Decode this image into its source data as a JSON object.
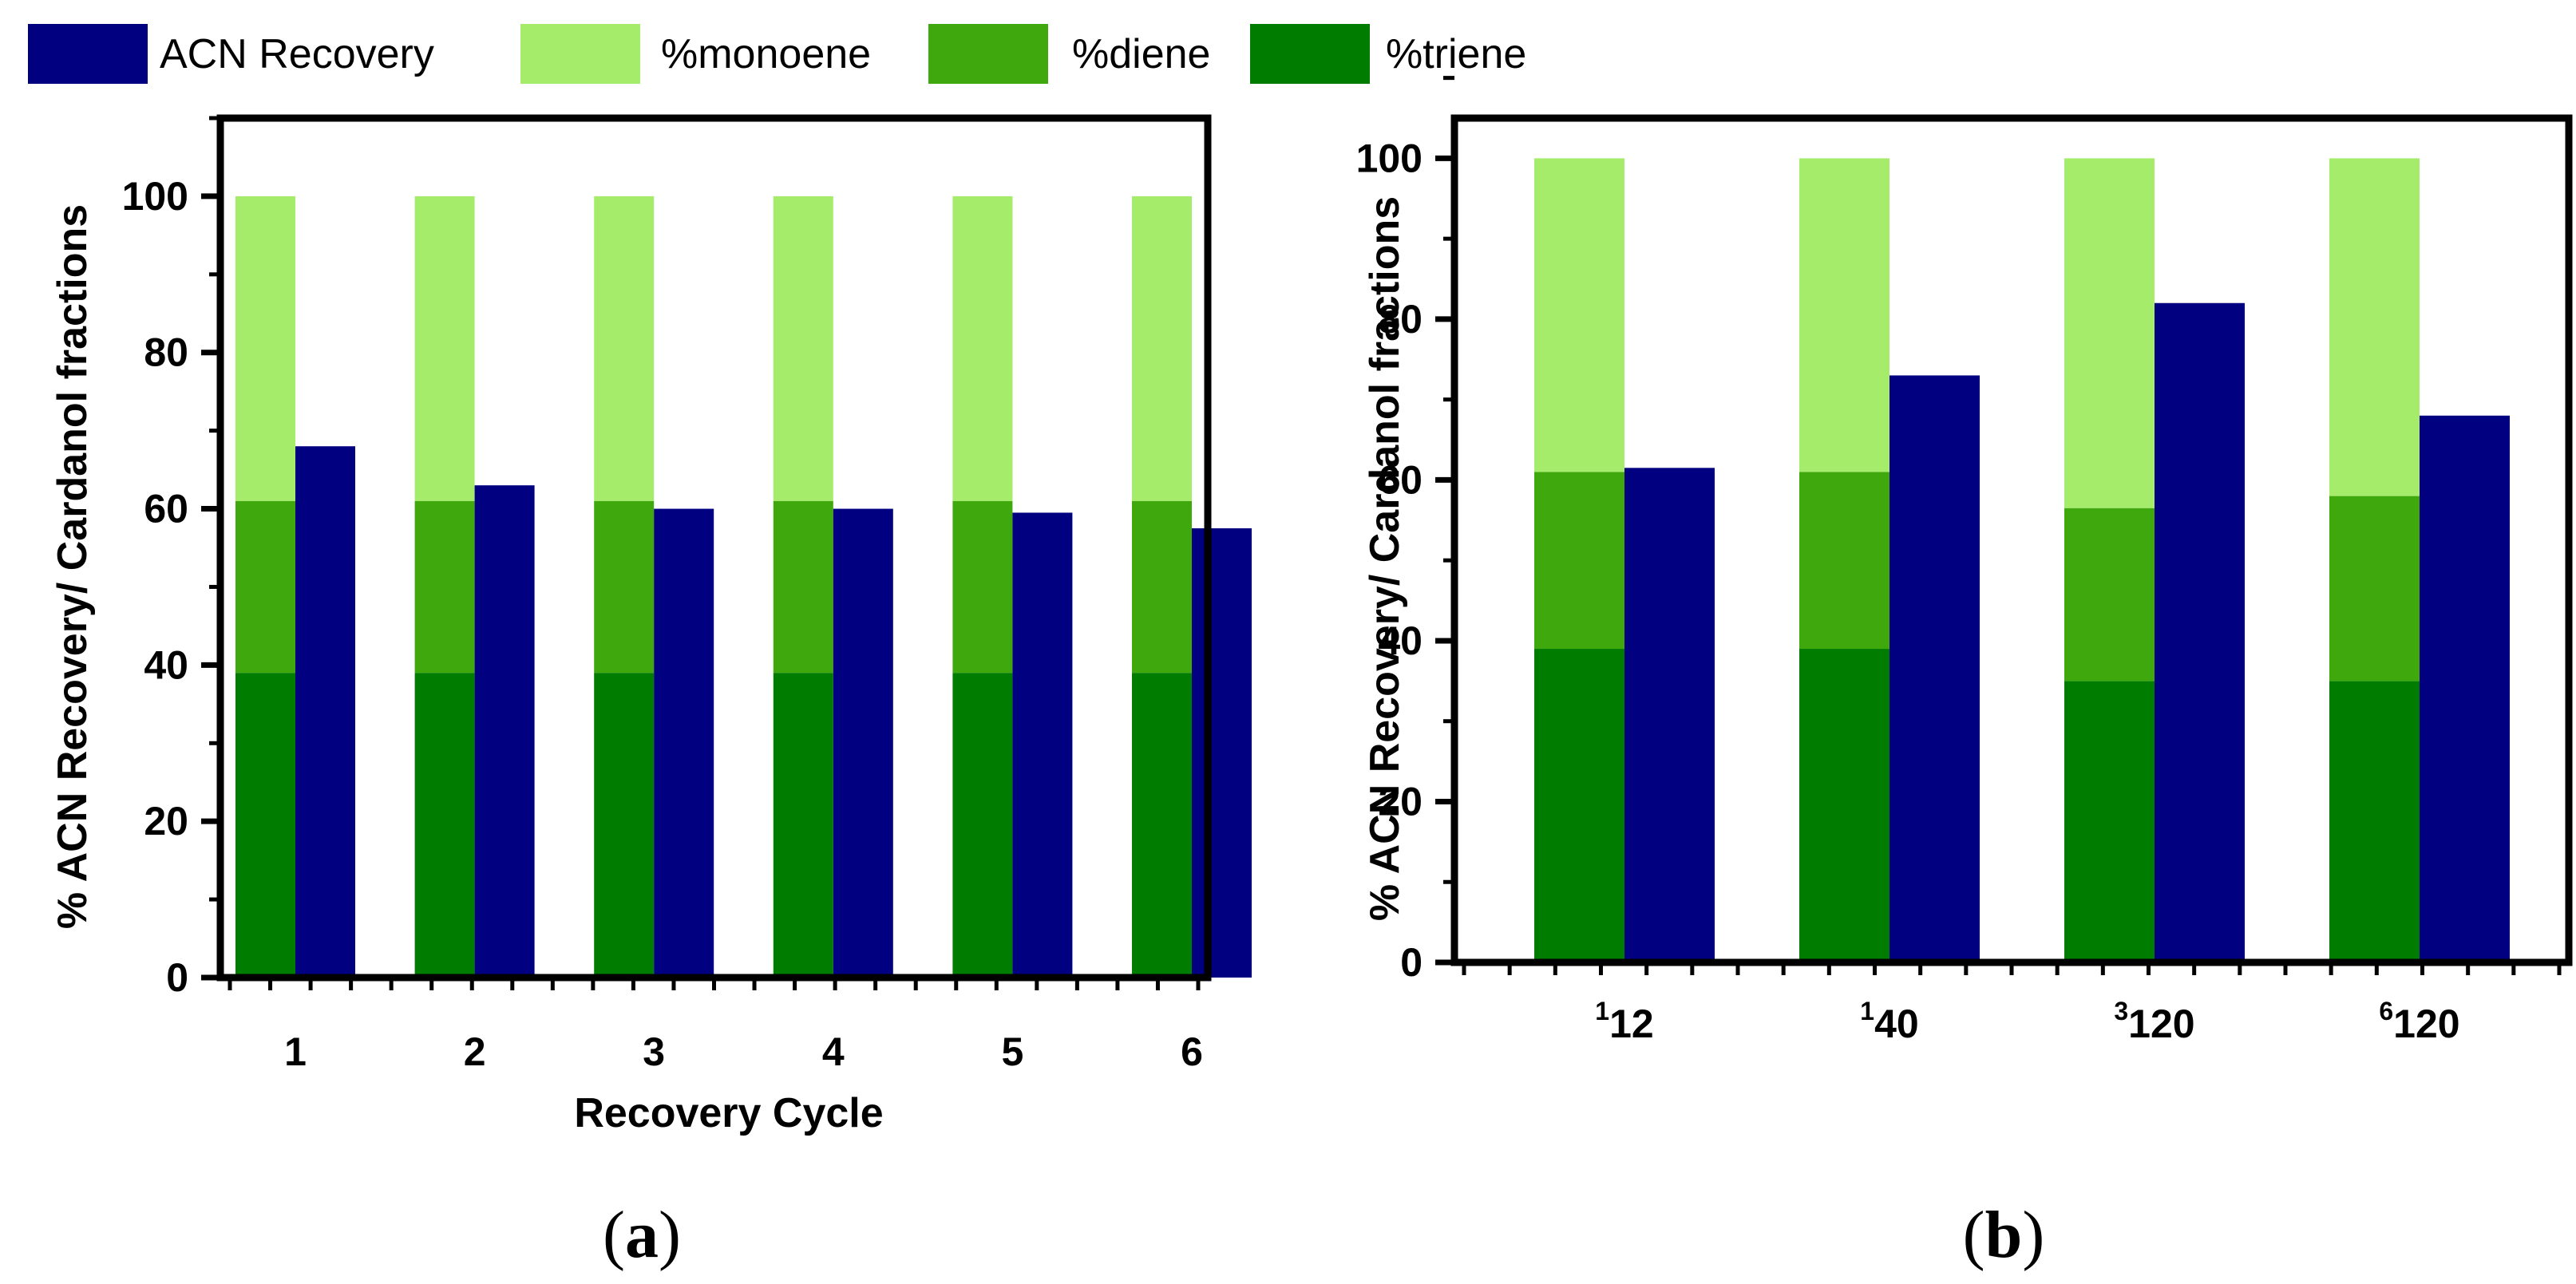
{
  "legend": {
    "items": [
      {
        "label": "ACN Recovery",
        "color": "#010080"
      },
      {
        "label": "%monoene",
        "color": "#a5ec6a"
      },
      {
        "label": "%diene",
        "color": "#3fa80c"
      },
      {
        "label": "%triene",
        "color": "#007d00"
      }
    ]
  },
  "colors": {
    "acn": "#010080",
    "monoene": "#a5ec6a",
    "diene": "#3fa80c",
    "triene": "#007d00"
  },
  "chart_data": [
    {
      "type": "bar",
      "panel_label": "a",
      "ylabel": "% ACN Recovery/ Cardanol fractions",
      "xlabel": "Recovery Cycle",
      "ylim": [
        0,
        110
      ],
      "yticks": [
        "0",
        "20",
        "40",
        "60",
        "80",
        "100"
      ],
      "categories": [
        "1",
        "2",
        "3",
        "4",
        "5",
        "6"
      ],
      "category_sup": [
        "",
        "",
        "",
        "",
        "",
        ""
      ],
      "series": [
        {
          "name": "%triene",
          "stack": "cardanol",
          "values": [
            39,
            39,
            39,
            39,
            39,
            39
          ]
        },
        {
          "name": "%diene",
          "stack": "cardanol",
          "values": [
            22,
            22,
            22,
            22,
            22,
            22
          ]
        },
        {
          "name": "%monoene",
          "stack": "cardanol",
          "values": [
            39,
            39,
            39,
            39,
            39,
            39
          ]
        },
        {
          "name": "ACN Recovery",
          "stack": "acn",
          "values": [
            68,
            63,
            60,
            60,
            59.5,
            57.5
          ]
        }
      ]
    },
    {
      "type": "bar",
      "panel_label": "b",
      "ylabel": "% ACN Recovery/ Cardanol fractions",
      "xlabel": "",
      "ylim": [
        0,
        105
      ],
      "yticks": [
        "0",
        "20",
        "40",
        "60",
        "80",
        "100"
      ],
      "categories": [
        "12",
        "40",
        "120",
        "120"
      ],
      "category_sup": [
        "1",
        "1",
        "3",
        "6"
      ],
      "series": [
        {
          "name": "%triene",
          "stack": "cardanol",
          "values": [
            39,
            39,
            35,
            35
          ]
        },
        {
          "name": "%diene",
          "stack": "cardanol",
          "values": [
            22,
            22,
            21.5,
            23
          ]
        },
        {
          "name": "%monoene",
          "stack": "cardanol",
          "values": [
            39,
            39,
            43.5,
            42
          ]
        },
        {
          "name": "ACN Recovery",
          "stack": "acn",
          "values": [
            61.5,
            73,
            82,
            68
          ]
        }
      ]
    }
  ]
}
